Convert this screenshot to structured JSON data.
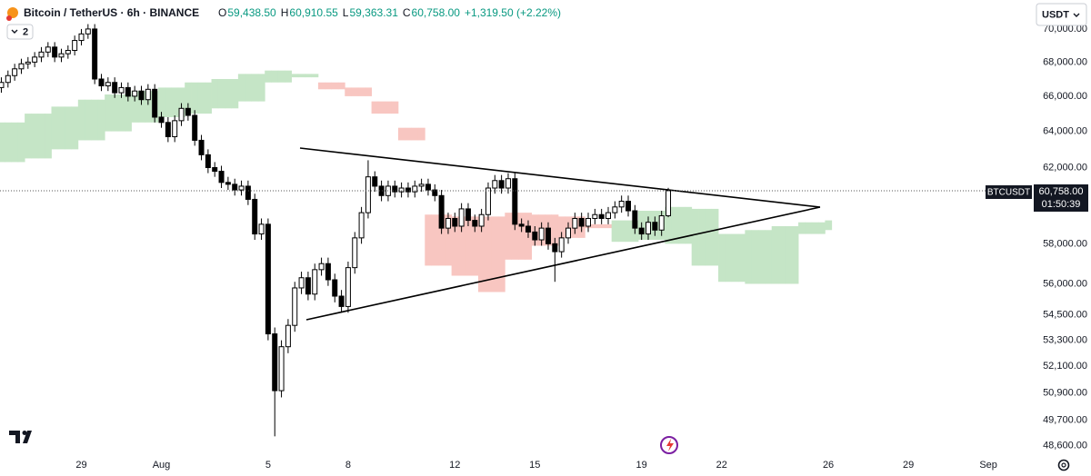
{
  "chart_data": {
    "type": "candlestick",
    "title": "Bitcoin / TetherUS · 6h · BINANCE",
    "legend": {
      "o_label": "O",
      "open": "59,438.50",
      "h_label": "H",
      "high": "60,910.55",
      "l_label": "L",
      "low": "59,363.31",
      "c_label": "C",
      "close": "60,758.00",
      "change": "+1,319.50 (+2.22%)",
      "color": "#089981"
    },
    "indicator_count": "2",
    "currency": "USDT",
    "price_tag": {
      "symbol": "BTCUSDT",
      "price": "60,758.00",
      "countdown": "01:50:39"
    },
    "log_scale": true,
    "grid": false,
    "up_color": "#ffffff",
    "down_color": "#000000",
    "cloud_up_color": "#c5e5c6",
    "cloud_down_color": "#f8c6c1",
    "ylim": [
      48240,
      71800
    ],
    "yticks": [
      {
        "value": 70000,
        "label": "70,000.00"
      },
      {
        "value": 68000,
        "label": "68,000.00"
      },
      {
        "value": 66000,
        "label": "66,000.00"
      },
      {
        "value": 64000,
        "label": "64,000.00"
      },
      {
        "value": 62000,
        "label": "62,000.00"
      },
      {
        "value": 58000,
        "label": "58,000.00"
      },
      {
        "value": 56000,
        "label": "56,000.00"
      },
      {
        "value": 54500,
        "label": "54,500.00"
      },
      {
        "value": 53300,
        "label": "53,300.00"
      },
      {
        "value": 52100,
        "label": "52,100.00"
      },
      {
        "value": 50900,
        "label": "50,900.00"
      },
      {
        "value": 49700,
        "label": "49,700.00"
      },
      {
        "value": 48600,
        "label": "48,600.00"
      }
    ],
    "categories": [
      null,
      null,
      null,
      null,
      null,
      null,
      null,
      null,
      null,
      null,
      null,
      null,
      "29",
      null,
      null,
      null,
      null,
      null,
      null,
      null,
      null,
      null,
      null,
      null,
      "Aug",
      null,
      null,
      null,
      null,
      null,
      null,
      null,
      null,
      null,
      null,
      null,
      null,
      null,
      null,
      null,
      "5",
      null,
      null,
      null,
      null,
      null,
      null,
      null,
      null,
      null,
      null,
      null,
      "8",
      null,
      null,
      null,
      null,
      null,
      null,
      null,
      null,
      null,
      null,
      null,
      null,
      null,
      null,
      null,
      "12",
      null,
      null,
      null,
      null,
      null,
      null,
      null,
      null,
      null,
      null,
      null,
      "15",
      null,
      null,
      null,
      null,
      null,
      null,
      null,
      null,
      null,
      null,
      null,
      null,
      null,
      null,
      null,
      "19",
      null,
      null,
      null,
      null,
      null,
      null,
      null,
      null,
      null,
      null,
      null,
      "22",
      null,
      null,
      null,
      null,
      null,
      null,
      null,
      null,
      null,
      null,
      null,
      null,
      null,
      null,
      null,
      "26",
      null,
      null,
      null,
      null,
      null,
      null,
      null,
      null,
      null,
      null,
      null,
      "29",
      null,
      null,
      null,
      null,
      null,
      null,
      null,
      null,
      null,
      null,
      null,
      "Sep",
      null,
      null,
      null
    ],
    "open": [
      66500,
      66800,
      67200,
      67600,
      67900,
      68000,
      68300,
      68600,
      68900,
      68300,
      68500,
      68700,
      69300,
      69700,
      70000,
      67000,
      66600,
      66800,
      66200,
      66500,
      66000,
      66300,
      65800,
      66400,
      64800,
      64500,
      63700,
      64600,
      65300,
      64900,
      63500,
      62700,
      62000,
      61800,
      61200,
      61100,
      60800,
      61000,
      60300,
      58500,
      59000,
      53600,
      51000,
      53000,
      54000,
      55800,
      56300,
      55500,
      56700,
      57000,
      56200,
      55400,
      54900,
      56800,
      58300,
      59600,
      61500,
      61000,
      60500,
      61000,
      60700,
      60900,
      60700,
      61000,
      61100,
      60800,
      60500,
      58800,
      59300,
      58900,
      59800,
      59200,
      58900,
      59500,
      60900,
      61300,
      60900,
      61400,
      59000,
      58900,
      58600,
      58200,
      58800,
      58000,
      57600,
      58300,
      58800,
      59300,
      58900,
      59300,
      59500,
      59300,
      59600,
      59900,
      60200,
      59700,
      58800,
      58500,
      59100,
      58700,
      59438.5,
      null,
      null,
      null,
      null,
      null,
      null,
      null,
      null,
      null,
      null,
      null,
      null,
      null,
      null,
      null,
      null,
      null,
      null,
      null,
      null,
      null,
      null,
      null,
      null,
      null,
      null,
      null,
      null,
      null,
      null,
      null,
      null,
      null,
      null,
      null,
      null,
      null,
      null,
      null,
      null,
      null,
      null,
      null,
      null,
      null,
      null,
      null,
      null,
      null,
      null,
      null
    ],
    "high": [
      67100,
      67500,
      67900,
      68200,
      68300,
      68600,
      68900,
      69200,
      69200,
      68800,
      69000,
      69600,
      70000,
      70300,
      70300,
      67300,
      67100,
      67100,
      66800,
      66800,
      66600,
      66600,
      66700,
      66700,
      65100,
      64800,
      64900,
      65600,
      65600,
      65200,
      63800,
      63000,
      62300,
      62100,
      61500,
      61400,
      61300,
      61300,
      60600,
      59300,
      59300,
      53900,
      53300,
      54300,
      56100,
      56600,
      56600,
      57000,
      57300,
      57300,
      56500,
      55700,
      57100,
      58600,
      59900,
      62400,
      61800,
      61300,
      61300,
      61300,
      61200,
      61200,
      61300,
      61400,
      61400,
      61100,
      60800,
      59600,
      59600,
      60100,
      60100,
      59500,
      59800,
      61200,
      61600,
      61600,
      61700,
      61700,
      59300,
      59200,
      58900,
      59100,
      59100,
      58300,
      58600,
      59100,
      59600,
      59600,
      59600,
      59800,
      59800,
      59900,
      60200,
      60500,
      60500,
      60000,
      59100,
      59400,
      59400,
      59700,
      60910.55,
      null,
      null,
      null,
      null,
      null,
      null,
      null,
      null,
      null,
      null,
      null,
      null,
      null,
      null,
      null,
      null,
      null,
      null,
      null,
      null,
      null,
      null,
      null,
      null,
      null,
      null,
      null,
      null,
      null,
      null,
      null,
      null,
      null,
      null,
      null,
      null,
      null,
      null,
      null,
      null,
      null,
      null,
      null,
      null,
      null,
      null,
      null,
      null,
      null,
      null,
      null
    ],
    "low": [
      66200,
      66500,
      66900,
      67300,
      67600,
      67700,
      68000,
      68300,
      68000,
      68000,
      68200,
      68400,
      69000,
      69400,
      66700,
      66300,
      66300,
      65900,
      65900,
      65700,
      65700,
      65500,
      65500,
      64500,
      64200,
      63400,
      63400,
      64300,
      64600,
      63200,
      62400,
      61700,
      61500,
      60900,
      60800,
      60500,
      60500,
      60000,
      58200,
      58200,
      53300,
      49000,
      50700,
      52700,
      53700,
      55500,
      55200,
      55200,
      56400,
      55900,
      55100,
      54600,
      54600,
      56500,
      58000,
      59300,
      60700,
      60200,
      60200,
      60400,
      60400,
      60400,
      60400,
      60700,
      60500,
      60200,
      58500,
      58500,
      58600,
      58600,
      58900,
      58600,
      58600,
      59200,
      60600,
      60600,
      60600,
      58700,
      58600,
      58300,
      57900,
      57900,
      57700,
      56100,
      57300,
      58000,
      58500,
      58600,
      58600,
      59000,
      59000,
      59000,
      59300,
      59600,
      59400,
      58500,
      58200,
      58200,
      58400,
      58400,
      59363.31,
      null,
      null,
      null,
      null,
      null,
      null,
      null,
      null,
      null,
      null,
      null,
      null,
      null,
      null,
      null,
      null,
      null,
      null,
      null,
      null,
      null,
      null,
      null,
      null,
      null,
      null,
      null,
      null,
      null,
      null,
      null,
      null,
      null,
      null,
      null,
      null,
      null,
      null,
      null,
      null,
      null,
      null,
      null,
      null,
      null,
      null,
      null,
      null,
      null,
      null,
      null
    ],
    "close": [
      66800,
      67200,
      67600,
      67900,
      68000,
      68300,
      68600,
      68900,
      68300,
      68500,
      68700,
      69300,
      69700,
      70000,
      67000,
      66600,
      66800,
      66200,
      66500,
      66000,
      66300,
      65800,
      66400,
      64800,
      64500,
      63700,
      64600,
      65300,
      64900,
      63500,
      62700,
      62000,
      61800,
      61200,
      61100,
      60800,
      61000,
      60300,
      58500,
      59000,
      53600,
      51000,
      53000,
      54000,
      55800,
      56300,
      55500,
      56700,
      57000,
      56200,
      55400,
      54900,
      56800,
      58300,
      59600,
      61500,
      61000,
      60500,
      61000,
      60700,
      60900,
      60700,
      61000,
      61100,
      60800,
      60500,
      58800,
      59300,
      58900,
      59800,
      59200,
      58900,
      59500,
      60900,
      61300,
      60900,
      61400,
      59000,
      58900,
      58600,
      58200,
      58800,
      58000,
      57600,
      58300,
      58800,
      59300,
      58900,
      59300,
      59500,
      59300,
      59600,
      59900,
      60200,
      59700,
      58800,
      58500,
      59100,
      58700,
      59438.5,
      60758,
      null,
      null,
      null,
      null,
      null,
      null,
      null,
      null,
      null,
      null,
      null,
      null,
      null,
      null,
      null,
      null,
      null,
      null,
      null,
      null,
      null,
      null,
      null,
      null,
      null,
      null,
      null,
      null,
      null,
      null,
      null,
      null,
      null,
      null,
      null,
      null,
      null,
      null,
      null,
      null,
      null,
      null,
      null,
      null,
      null,
      null,
      null,
      null,
      null,
      null,
      null
    ],
    "span_a": [
      64500,
      64500,
      64500,
      64500,
      65000,
      65000,
      65000,
      65000,
      65400,
      65400,
      65400,
      65400,
      65800,
      65800,
      65800,
      65800,
      66100,
      66100,
      66100,
      66100,
      66300,
      66300,
      66300,
      66300,
      66500,
      66500,
      66500,
      66500,
      66800,
      66800,
      66800,
      66800,
      67000,
      67000,
      67000,
      67000,
      67300,
      67300,
      67300,
      67300,
      67500,
      67500,
      67500,
      67500,
      67300,
      67300,
      67300,
      67300,
      66400,
      66400,
      66400,
      66400,
      66000,
      66000,
      66000,
      66000,
      65000,
      65000,
      65000,
      65000,
      63500,
      63500,
      63500,
      63500,
      56900,
      56900,
      56900,
      56900,
      56400,
      56400,
      56400,
      56400,
      55600,
      55600,
      55600,
      55600,
      57200,
      57200,
      57200,
      57200,
      57900,
      57900,
      57900,
      57900,
      58300,
      58300,
      58300,
      58300,
      58800,
      58800,
      58800,
      58800,
      59200,
      59200,
      59200,
      59200,
      59700,
      59700,
      59700,
      59700,
      59900,
      59900,
      59900,
      59900,
      59800,
      59800,
      59800,
      59800,
      58500,
      58500,
      58500,
      58500,
      58700,
      58700,
      58700,
      58700,
      58900,
      58900,
      58900,
      58900,
      59100,
      59100,
      59100,
      59100,
      59200,
      null,
      null,
      null,
      null,
      null,
      null,
      null,
      null,
      null,
      null,
      null,
      null,
      null,
      null,
      null,
      null,
      null,
      null,
      null,
      null,
      null,
      null,
      null,
      null,
      null,
      null,
      null
    ],
    "span_b": [
      62300,
      62300,
      62300,
      62300,
      62500,
      62500,
      62500,
      62500,
      63000,
      63000,
      63000,
      63000,
      63500,
      63500,
      63500,
      63500,
      64000,
      64000,
      64000,
      64000,
      64500,
      64500,
      64500,
      64500,
      64800,
      64800,
      64800,
      64800,
      65000,
      65000,
      65000,
      65000,
      65300,
      65300,
      65300,
      65300,
      65700,
      65700,
      65700,
      65700,
      66800,
      66800,
      66800,
      66800,
      67100,
      67100,
      67100,
      67100,
      66800,
      66800,
      66800,
      66800,
      66500,
      66500,
      66500,
      66500,
      65700,
      65700,
      65700,
      65700,
      64200,
      64200,
      64200,
      64200,
      59500,
      59500,
      59500,
      59500,
      59400,
      59400,
      59400,
      59400,
      59400,
      59400,
      59400,
      59400,
      59600,
      59600,
      59600,
      59600,
      59500,
      59500,
      59500,
      59500,
      59400,
      59400,
      59400,
      59400,
      59000,
      59000,
      59000,
      59000,
      58100,
      58100,
      58100,
      58100,
      58200,
      58200,
      58200,
      58200,
      58000,
      58000,
      58000,
      58000,
      56900,
      56900,
      56900,
      56900,
      56100,
      56100,
      56100,
      56100,
      56000,
      56000,
      56000,
      56000,
      56000,
      56000,
      56000,
      56000,
      58500,
      58500,
      58500,
      58500,
      58700,
      null,
      null,
      null,
      null,
      null,
      null,
      null,
      null,
      null,
      null,
      null,
      null,
      null,
      null,
      null,
      null,
      null,
      null,
      null,
      null,
      null,
      null,
      null,
      null,
      null,
      null,
      null
    ]
  }
}
